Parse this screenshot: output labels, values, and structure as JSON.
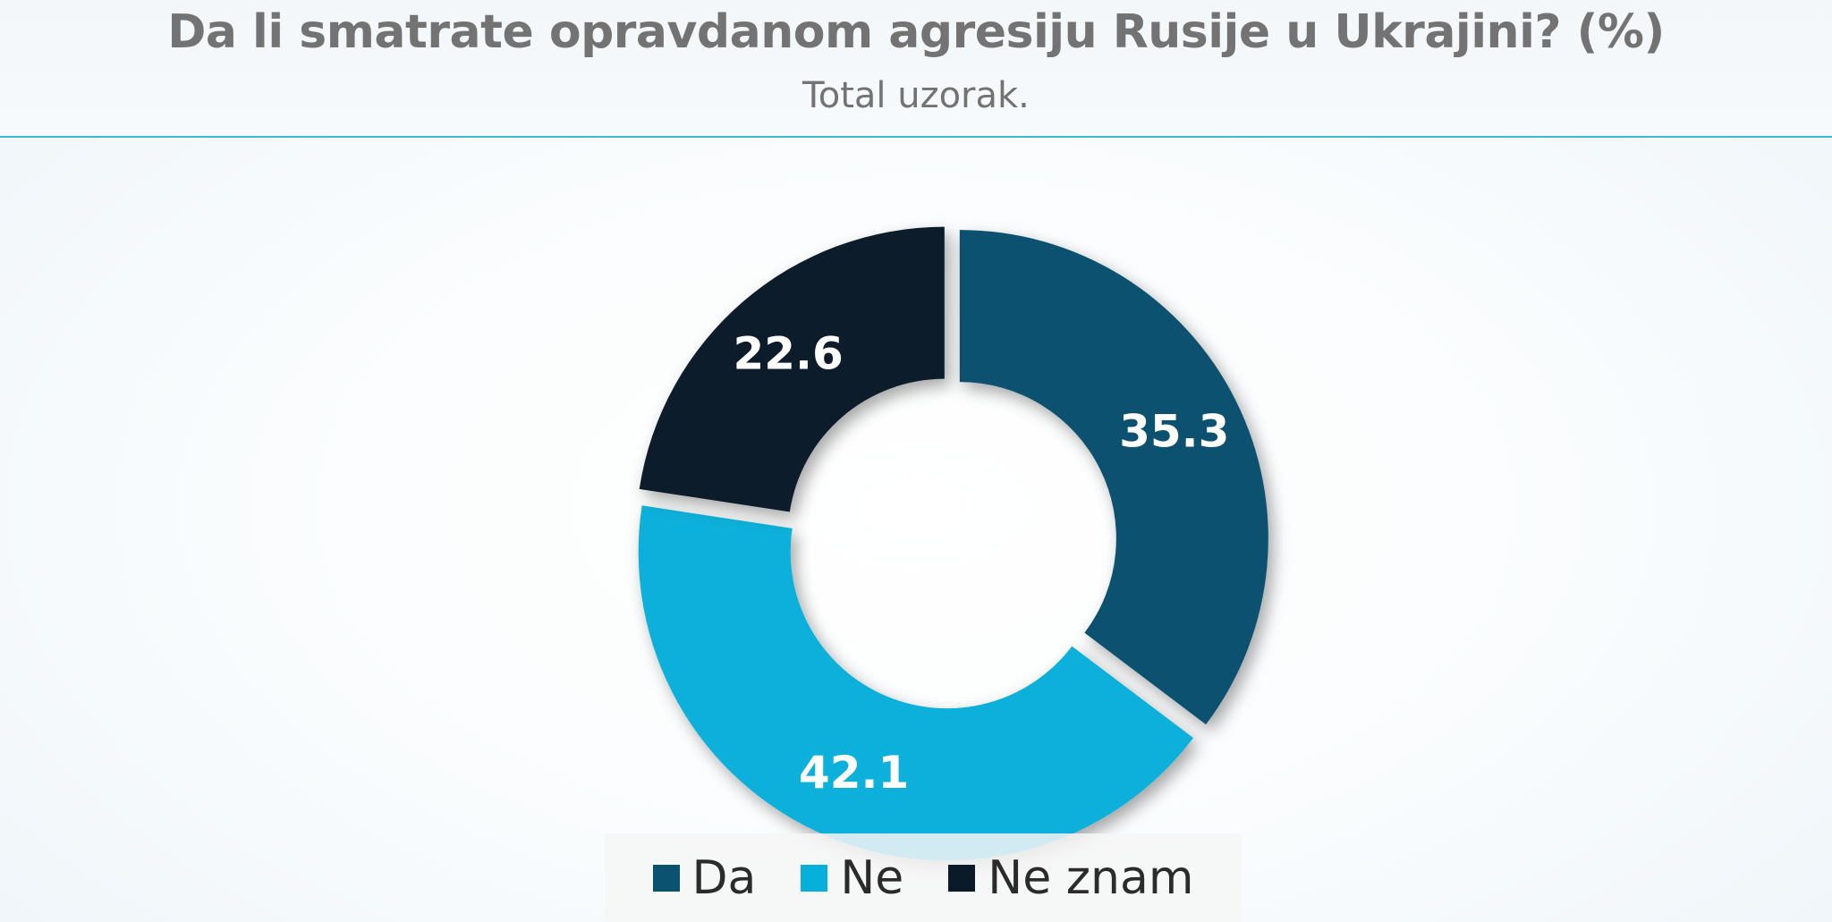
{
  "chart_data": {
    "type": "pie",
    "title": "Da li smatrate opravdanom agresiju Rusije u Ukrajini? (%)",
    "subtitle": "Total uzorak.",
    "categories": [
      "Da",
      "Ne",
      "Ne znam"
    ],
    "values": [
      35.3,
      42.1,
      22.6
    ],
    "colors": [
      "#0b5170",
      "#07b0da",
      "#0a1a29"
    ],
    "label_color": "#ffffff",
    "donut": true,
    "legend_position": "bottom"
  }
}
